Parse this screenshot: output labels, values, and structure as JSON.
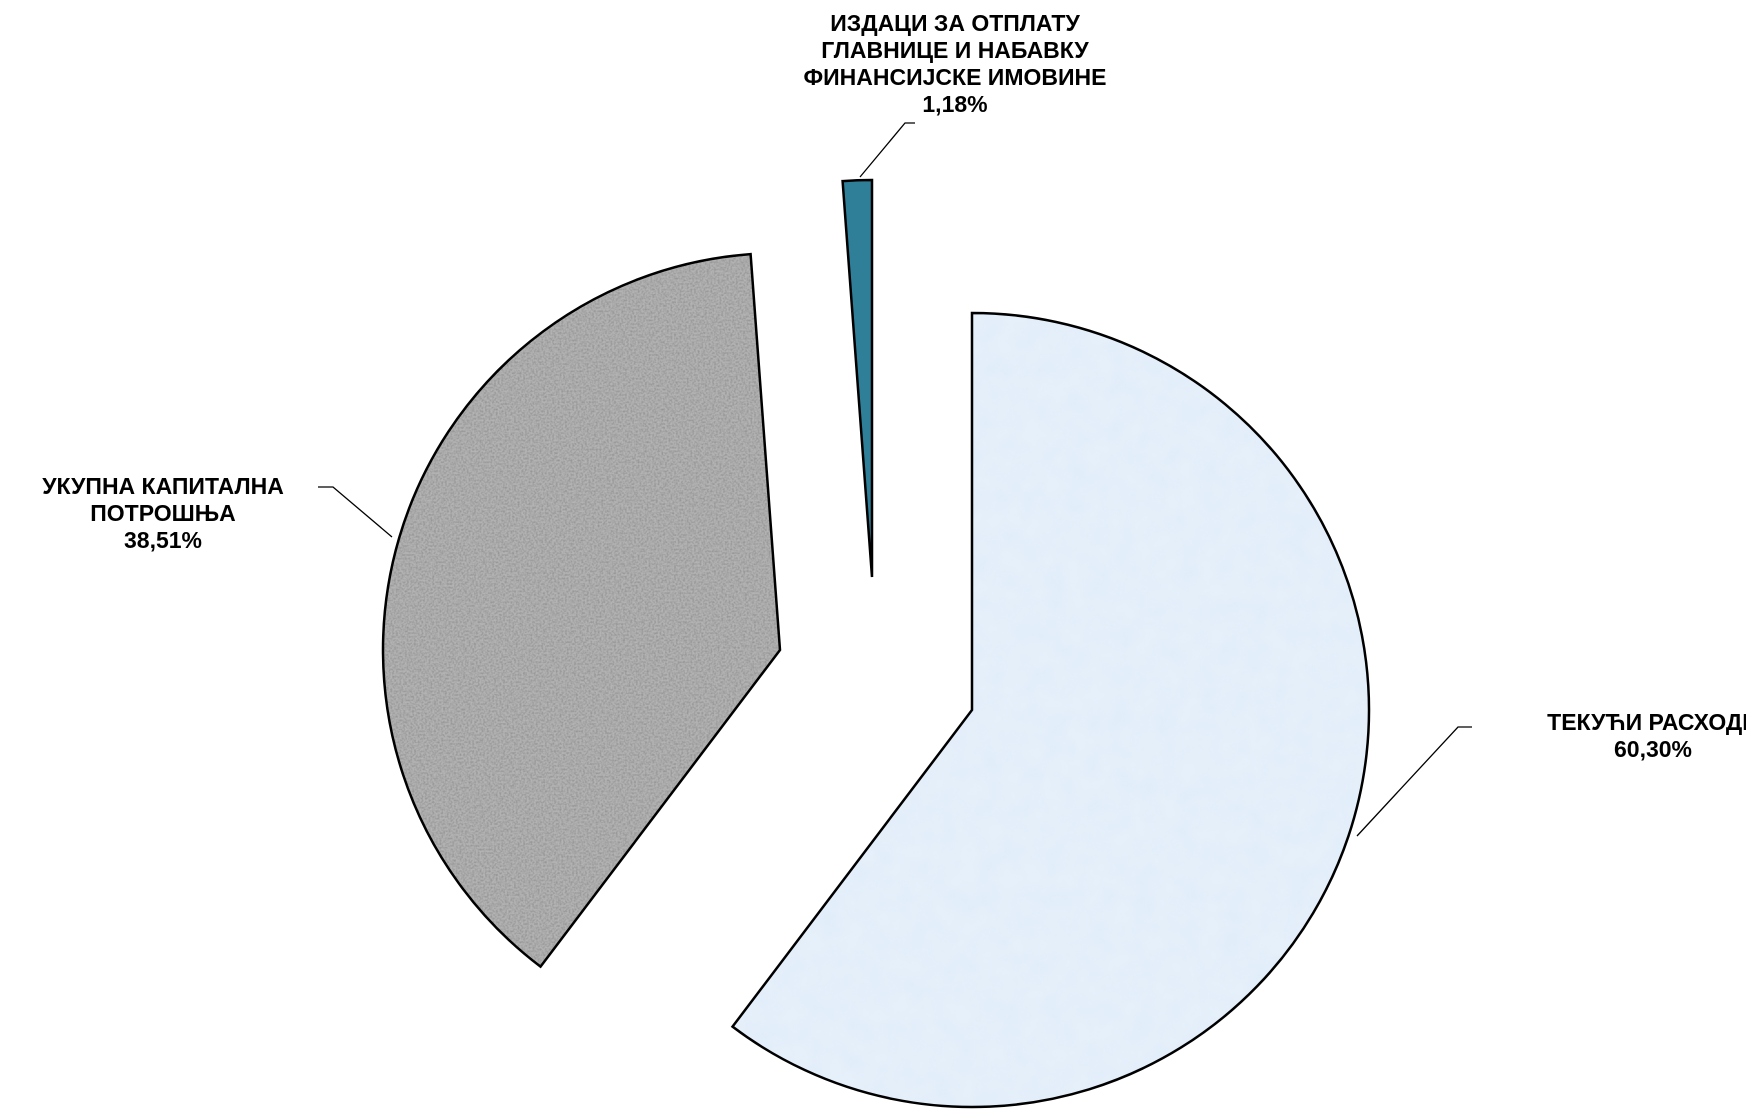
{
  "chart_data": {
    "type": "pie",
    "exploded": true,
    "legend": "none",
    "slices": [
      {
        "label_lines": [
          "ТЕКУЋИ РАСХОДИ"
        ],
        "value": 60.3,
        "value_label": "60,30%",
        "color": "#dbe9f8",
        "pattern": "light-blue-texture"
      },
      {
        "label_lines": [
          "УКУПНА КАПИТАЛНА",
          "ПОТРОШЊА"
        ],
        "value": 38.51,
        "value_label": "38,51%",
        "color": "#9a9a9a",
        "pattern": "gray-granite-texture"
      },
      {
        "label_lines": [
          "ИЗДАЦИ ЗА ОТПЛАТУ",
          "ГЛАВНИЦЕ И НАБАВКУ",
          "ФИНАНСИЈСКЕ ИМОВИНЕ"
        ],
        "value": 1.18,
        "value_label": "1,18%",
        "color": "#2e7f97",
        "pattern": "solid"
      }
    ]
  }
}
